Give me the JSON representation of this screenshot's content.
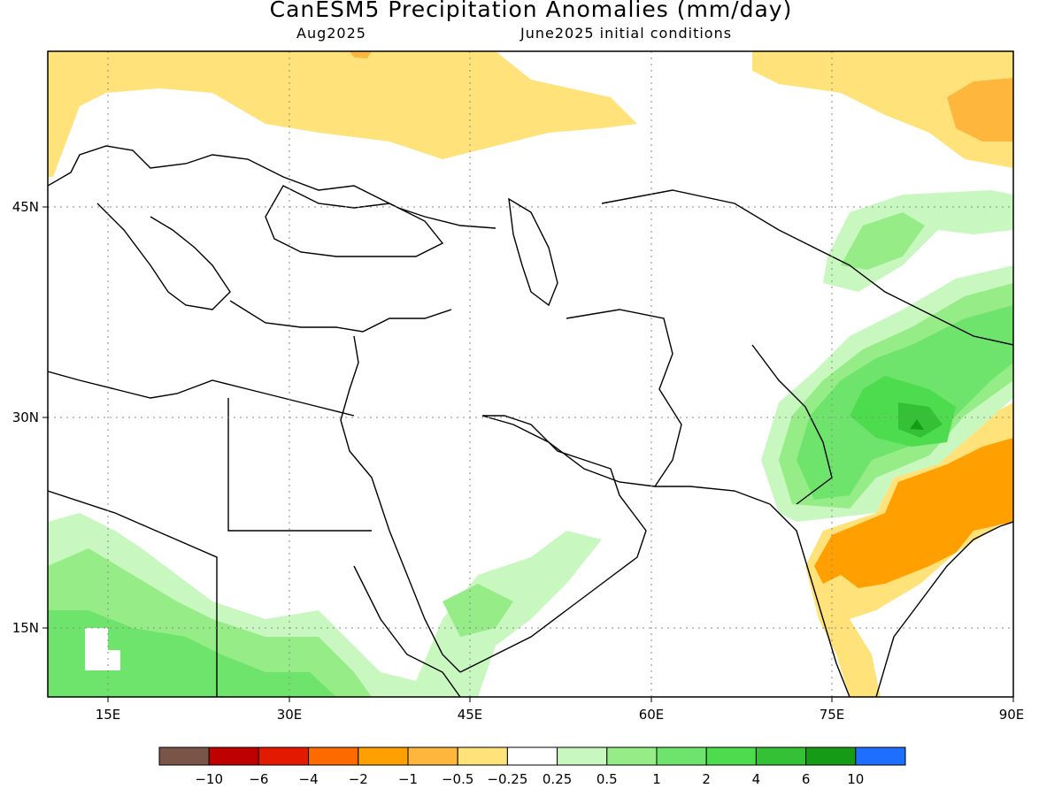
{
  "title": "CanESM5 Precipitation Anomalies (mm/day)",
  "valid_month": "Aug2025",
  "init_conditions": "June2025 initial conditions",
  "lat_labels": [
    "45N",
    "30N",
    "15N"
  ],
  "lon_labels": [
    "15E",
    "30E",
    "45E",
    "60E",
    "75E",
    "90E"
  ],
  "colorbar": {
    "colors": [
      "#7a5547",
      "#bf0000",
      "#e31a00",
      "#ff6a00",
      "#ff9f00",
      "#ffb63c",
      "#ffe37a",
      "#ffffff",
      "#c8f7bf",
      "#96ec86",
      "#6ee46c",
      "#4ddc4d",
      "#35c135",
      "#159b15",
      "#1e6eff"
    ],
    "labels": [
      "−10",
      "−6",
      "−4",
      "−2",
      "−1",
      "−0.5",
      "−0.25",
      "0.25",
      "0.5",
      "1",
      "2",
      "4",
      "6",
      "10"
    ]
  },
  "palette": {
    "dry_light": "#ffe37a",
    "dry_mid": "#ffb63c",
    "dry_strong": "#ff9f00",
    "wet_light": "#c8f7bf",
    "wet_mid": "#96ec86",
    "wet_strong": "#6ee46c",
    "wet_stronger": "#4ddc4d",
    "wet_peak": "#35c135",
    "wet_max": "#159b15"
  }
}
